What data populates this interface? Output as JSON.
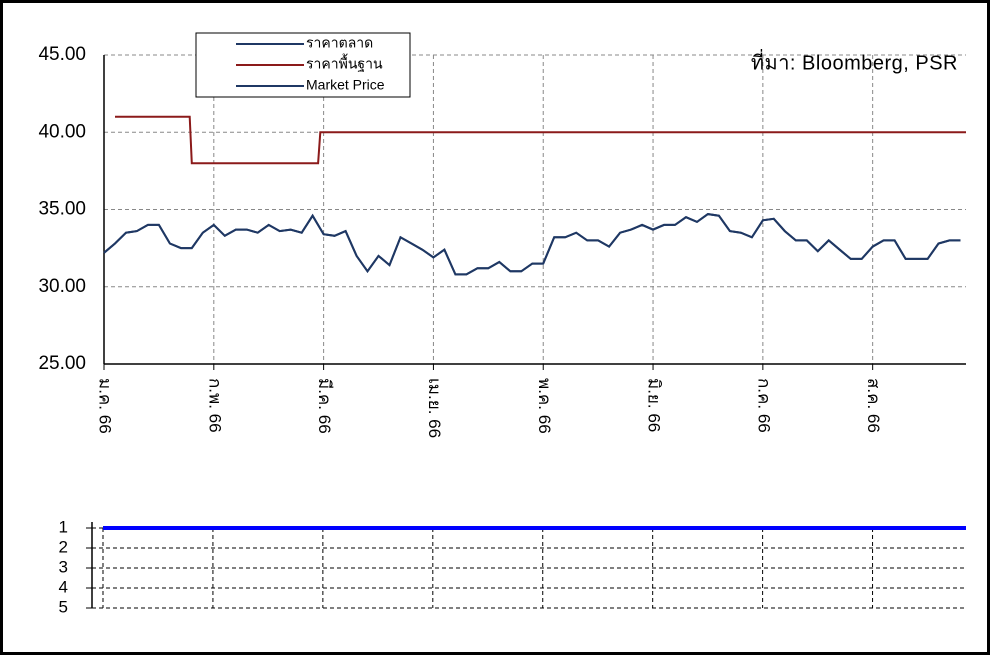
{
  "chart_data": [
    {
      "type": "line",
      "annotation": "ที่มา:  Bloomberg, PSR",
      "xlim": [
        0,
        7.85
      ],
      "xticks": [
        {
          "value": 0,
          "label": "ม.ค. 66"
        },
        {
          "value": 1,
          "label": "ก.พ. 66"
        },
        {
          "value": 2,
          "label": "มี.ค. 66"
        },
        {
          "value": 3,
          "label": "เม.ย. 66"
        },
        {
          "value": 4,
          "label": "พ.ค. 66"
        },
        {
          "value": 5,
          "label": "มิ.ย. 66"
        },
        {
          "value": 6,
          "label": "ก.ค. 66"
        },
        {
          "value": 7,
          "label": "ส.ค. 66"
        }
      ],
      "ylim": [
        25,
        45
      ],
      "yticks": [
        {
          "value": 25,
          "label": "25.00"
        },
        {
          "value": 30,
          "label": "30.00"
        },
        {
          "value": 35,
          "label": "35.00"
        },
        {
          "value": 40,
          "label": "40.00"
        },
        {
          "value": 45,
          "label": "45.00"
        }
      ],
      "grid": true,
      "legend": "top-left",
      "x": [
        0,
        0.1,
        0.2,
        0.3,
        0.4,
        0.5,
        0.6,
        0.7,
        0.8,
        0.9,
        1,
        1.1,
        1.2,
        1.3,
        1.4,
        1.5,
        1.6,
        1.7,
        1.8,
        1.9,
        2,
        2.1,
        2.2,
        2.3,
        2.4,
        2.5,
        2.6,
        2.7,
        2.8,
        2.9,
        3,
        3.1,
        3.2,
        3.3,
        3.4,
        3.5,
        3.6,
        3.7,
        3.8,
        3.9,
        4,
        4.1,
        4.2,
        4.3,
        4.4,
        4.5,
        4.6,
        4.7,
        4.8,
        4.9,
        5,
        5.1,
        5.2,
        5.3,
        5.4,
        5.5,
        5.6,
        5.7,
        5.8,
        5.9,
        6,
        6.1,
        6.2,
        6.3,
        6.4,
        6.5,
        6.6,
        6.7,
        6.8,
        6.9,
        7,
        7.1,
        7.2,
        7.3,
        7.4,
        7.5,
        7.6,
        7.7,
        7.8
      ],
      "series": [
        {
          "name": "ราคาตลาด",
          "color": "#1f3864",
          "values": [
            32.2,
            32.8,
            33.5,
            33.6,
            34.0,
            34.0,
            32.8,
            32.5,
            32.5,
            33.5,
            34.0,
            33.3,
            33.7,
            33.7,
            33.5,
            34.0,
            33.6,
            33.7,
            33.5,
            34.6,
            33.4,
            33.3,
            33.6,
            32.0,
            31.0,
            32.0,
            31.4,
            33.2,
            32.8,
            32.4,
            31.9,
            32.4,
            30.8,
            30.8,
            31.2,
            31.2,
            31.6,
            31.0,
            31.0,
            31.5,
            31.5,
            33.2,
            33.2,
            33.5,
            33.0,
            33.0,
            32.6,
            33.5,
            33.7,
            34.0,
            33.7,
            34.0,
            34.0,
            34.5,
            34.2,
            34.7,
            34.6,
            33.6,
            33.5,
            33.2,
            34.3,
            34.4,
            33.6,
            33.0,
            33.0,
            32.3,
            33.0,
            32.4,
            31.8,
            31.8,
            32.6,
            33.0,
            33.0,
            31.8,
            31.8,
            31.8,
            32.8,
            33.0,
            33.0
          ]
        },
        {
          "name": "ราคาพื้นฐาน",
          "color": "#8b1a1a",
          "x": [
            0.1,
            0.78,
            0.8,
            1.95,
            1.97,
            7.85
          ],
          "values": [
            41,
            41,
            38,
            38,
            40,
            40
          ]
        },
        {
          "name": "Market Price",
          "color": "#1f3864",
          "values": [
            32.2,
            32.8,
            33.5,
            33.6,
            34.0,
            34.0,
            32.8,
            32.5,
            32.5,
            33.5,
            34.0,
            33.3,
            33.7,
            33.7,
            33.5,
            34.0,
            33.6,
            33.7,
            33.5,
            34.6,
            33.4,
            33.3,
            33.6,
            32.0,
            31.0,
            32.0,
            31.4,
            33.2,
            32.8,
            32.4,
            31.9,
            32.4,
            30.8,
            30.8,
            31.2,
            31.2,
            31.6,
            31.0,
            31.0,
            31.5,
            31.5,
            33.2,
            33.2,
            33.5,
            33.0,
            33.0,
            32.6,
            33.5,
            33.7,
            34.0,
            33.7,
            34.0,
            34.0,
            34.5,
            34.2,
            34.7,
            34.6,
            33.6,
            33.5,
            33.2,
            34.3,
            34.4,
            33.6,
            33.0,
            33.0,
            32.3,
            33.0,
            32.4,
            31.8,
            31.8,
            32.6,
            33.0,
            33.0,
            31.8,
            31.8,
            31.8,
            32.8,
            33.0,
            33.0
          ]
        }
      ]
    },
    {
      "type": "line",
      "xlim": [
        -0.1,
        7.85
      ],
      "ylim": [
        5,
        1
      ],
      "yticks": [
        1,
        2,
        3,
        4,
        5
      ],
      "grid": true,
      "series": [
        {
          "color": "#0000ff",
          "x": [
            0,
            7.85
          ],
          "values": [
            1,
            1
          ]
        }
      ]
    }
  ]
}
